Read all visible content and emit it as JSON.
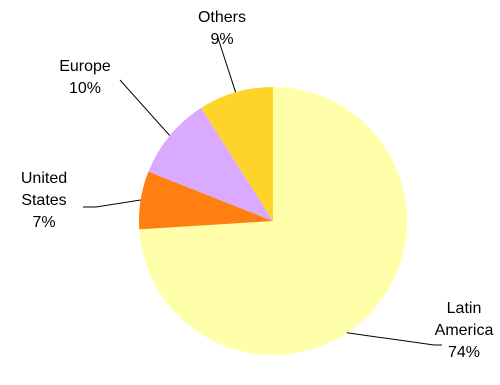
{
  "chart_data": {
    "type": "pie",
    "start_angle_deg": 0,
    "direction": "clockwise",
    "legend": "none",
    "slices": [
      {
        "label_lines": [
          "Latin",
          "America"
        ],
        "value": 74,
        "value_label": "74%",
        "color": "#FFFFAA"
      },
      {
        "label_lines": [
          "United",
          "States"
        ],
        "value": 7,
        "value_label": "7%",
        "color": "#FF7F10"
      },
      {
        "label_lines": [
          "Europe"
        ],
        "value": 10,
        "value_label": "10%",
        "color": "#D9AAFF"
      },
      {
        "label_lines": [
          "Others"
        ],
        "value": 9,
        "value_label": "9%",
        "color": "#FFD42A"
      }
    ]
  }
}
